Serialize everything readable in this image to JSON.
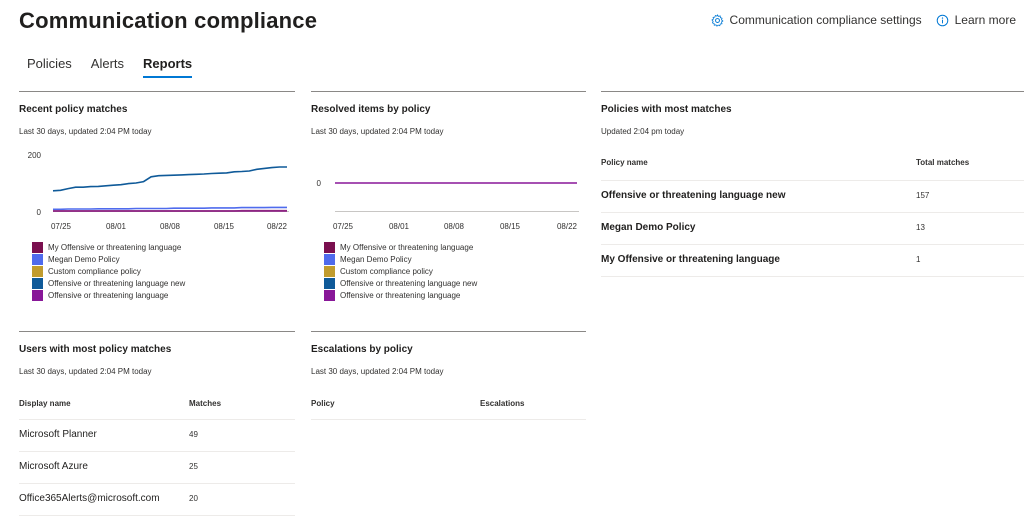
{
  "page": {
    "title": "Communication compliance"
  },
  "header": {
    "settings_label": "Communication compliance settings",
    "learn_label": "Learn more"
  },
  "tabs": [
    {
      "label": "Policies"
    },
    {
      "label": "Alerts"
    },
    {
      "label": "Reports",
      "active": true
    }
  ],
  "recent_matches": {
    "title": "Recent policy matches",
    "subtitle": "Last 30 days, updated 2:04 PM today",
    "y_ticks": [
      "200",
      "0"
    ],
    "x_ticks": [
      "07/25",
      "08/01",
      "08/08",
      "08/15",
      "08/22"
    ]
  },
  "resolved_items": {
    "title": "Resolved items by policy",
    "subtitle": "Last 30 days, updated 2:04 PM today",
    "y_ticks": [
      "0"
    ],
    "x_ticks": [
      "07/25",
      "08/01",
      "08/08",
      "08/15",
      "08/22"
    ]
  },
  "legend": [
    {
      "label": "My Offensive or threatening language",
      "color": "#7a0f4f"
    },
    {
      "label": "Megan Demo Policy",
      "color": "#4f6bed"
    },
    {
      "label": "Custom compliance policy",
      "color": "#c19c2e"
    },
    {
      "label": "Offensive or threatening language new",
      "color": "#0f5a99"
    },
    {
      "label": "Offensive or threatening language",
      "color": "#881798"
    }
  ],
  "chart_data": [
    {
      "type": "line",
      "title": "Recent policy matches",
      "x": [
        "07/23",
        "07/24",
        "07/25",
        "07/26",
        "07/27",
        "07/28",
        "07/29",
        "07/30",
        "07/31",
        "08/01",
        "08/02",
        "08/03",
        "08/04",
        "08/05",
        "08/06",
        "08/07",
        "08/08",
        "08/09",
        "08/10",
        "08/11",
        "08/12",
        "08/13",
        "08/14",
        "08/15",
        "08/16",
        "08/17",
        "08/18",
        "08/19",
        "08/20",
        "08/21",
        "08/22",
        "08/23"
      ],
      "ylim": [
        0,
        200
      ],
      "series": [
        {
          "name": "My Offensive or threatening language",
          "color": "#7a0f4f",
          "values": [
            0,
            0,
            0,
            0,
            0,
            0,
            0,
            0,
            0,
            0,
            0,
            0,
            0,
            0,
            0,
            0,
            0,
            0,
            0,
            0,
            0,
            0,
            0,
            0,
            0,
            1,
            1,
            1,
            1,
            1,
            1,
            1
          ]
        },
        {
          "name": "Megan Demo Policy",
          "color": "#4f6bed",
          "values": [
            6,
            6,
            7,
            7,
            7,
            7,
            8,
            8,
            8,
            8,
            8,
            9,
            9,
            9,
            9,
            9,
            10,
            10,
            10,
            10,
            10,
            11,
            11,
            11,
            11,
            12,
            12,
            12,
            12,
            13,
            13,
            13
          ]
        },
        {
          "name": "Custom compliance policy",
          "color": "#c19c2e",
          "values": [
            0,
            0,
            0,
            0,
            0,
            0,
            0,
            0,
            0,
            0,
            0,
            0,
            0,
            0,
            0,
            0,
            0,
            0,
            0,
            0,
            0,
            0,
            0,
            0,
            0,
            0,
            0,
            0,
            0,
            0,
            0,
            0
          ]
        },
        {
          "name": "Offensive or threatening language new",
          "color": "#0f5a99",
          "values": [
            72,
            74,
            80,
            85,
            85,
            87,
            88,
            90,
            92,
            94,
            98,
            100,
            105,
            122,
            126,
            127,
            128,
            129,
            130,
            131,
            132,
            134,
            135,
            136,
            140,
            141,
            143,
            149,
            152,
            155,
            157,
            157
          ]
        },
        {
          "name": "Offensive or threatening language",
          "color": "#881798",
          "values": [
            0,
            0,
            0,
            0,
            0,
            0,
            0,
            0,
            0,
            0,
            0,
            0,
            0,
            0,
            0,
            0,
            0,
            0,
            0,
            0,
            0,
            0,
            0,
            0,
            0,
            0,
            0,
            0,
            0,
            0,
            0,
            0
          ]
        }
      ]
    },
    {
      "type": "line",
      "title": "Resolved items by policy",
      "x": [
        "07/23",
        "08/23"
      ],
      "ylim": [
        0,
        200
      ],
      "series": [
        {
          "name": "Offensive or threatening language",
          "color": "#881798",
          "values": [
            0,
            0
          ]
        }
      ]
    }
  ],
  "most_matches": {
    "title": "Policies with most matches",
    "subtitle": "Updated 2:04 pm today",
    "columns": [
      "Policy name",
      "Total matches"
    ],
    "rows": [
      {
        "name": "Offensive or threatening language new",
        "value": "157"
      },
      {
        "name": "Megan Demo Policy",
        "value": "13"
      },
      {
        "name": "My Offensive or threatening language",
        "value": "1"
      }
    ]
  },
  "users_matches": {
    "title": "Users with most policy matches",
    "subtitle": "Last 30 days, updated 2:04 PM today",
    "columns": [
      "Display name",
      "Matches"
    ],
    "rows": [
      {
        "name": "Microsoft Planner",
        "value": "49"
      },
      {
        "name": "Microsoft Azure",
        "value": "25"
      },
      {
        "name": "Office365Alerts@microsoft.com",
        "value": "20"
      }
    ]
  },
  "escalations": {
    "title": "Escalations by policy",
    "subtitle": "Last 30 days, updated 2:04 PM today",
    "columns": [
      "Policy",
      "Escalations"
    ]
  }
}
